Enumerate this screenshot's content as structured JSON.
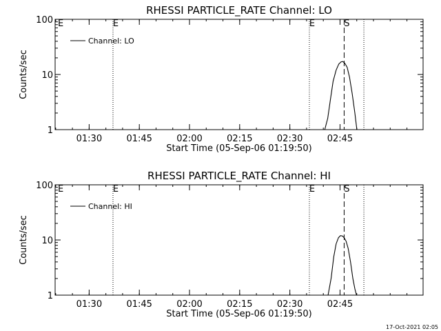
{
  "timestamp": "17-Oct-2021 02:05",
  "chart_data": [
    {
      "type": "line",
      "title": "RHESSI PARTICLE_RATE Channel: LO",
      "xlabel": "Start Time (05-Sep-06 01:19:50)",
      "ylabel": "Counts/sec",
      "x_unit": "minutes after 01:19:50",
      "xlim": [
        0,
        110
      ],
      "ylim": [
        1,
        100
      ],
      "yscale": "log",
      "xticks": [
        {
          "x": 10.17,
          "label": "01:30"
        },
        {
          "x": 25.17,
          "label": "01:45"
        },
        {
          "x": 40.17,
          "label": "02:00"
        },
        {
          "x": 55.17,
          "label": "02:15"
        },
        {
          "x": 70.17,
          "label": "02:30"
        },
        {
          "x": 85.17,
          "label": "02:45"
        }
      ],
      "yticks": [
        {
          "y": 1,
          "label": "1"
        },
        {
          "y": 10,
          "label": "10"
        },
        {
          "y": 100,
          "label": "100"
        }
      ],
      "legend": {
        "label": "Channel: LO",
        "position": "top-left"
      },
      "markers": [
        {
          "x": 17.3,
          "label": "E",
          "style": "dotted"
        },
        {
          "x": 76.0,
          "label": "E",
          "style": "dotted"
        },
        {
          "x": 86.4,
          "label": "S",
          "style": "dashed"
        },
        {
          "x": 92.3,
          "label": "",
          "style": "dotted"
        }
      ],
      "series": [
        {
          "x": [
            80.6,
            81.5,
            82.3,
            83.1,
            84.0,
            84.8,
            85.5,
            86.0,
            86.6,
            87.3,
            88.0,
            88.8,
            89.6,
            90.2
          ],
          "y": [
            1,
            1.6,
            3.5,
            7.5,
            12,
            15.5,
            17,
            17.2,
            16,
            13.5,
            9,
            4.5,
            2,
            1
          ]
        }
      ]
    },
    {
      "type": "line",
      "title": "RHESSI PARTICLE_RATE Channel: HI",
      "xlabel": "Start Time (05-Sep-06 01:19:50)",
      "ylabel": "Counts/sec",
      "x_unit": "minutes after 01:19:50",
      "xlim": [
        0,
        110
      ],
      "ylim": [
        1,
        100
      ],
      "yscale": "log",
      "xticks": [
        {
          "x": 10.17,
          "label": "01:30"
        },
        {
          "x": 25.17,
          "label": "01:45"
        },
        {
          "x": 40.17,
          "label": "02:00"
        },
        {
          "x": 55.17,
          "label": "02:15"
        },
        {
          "x": 70.17,
          "label": "02:30"
        },
        {
          "x": 85.17,
          "label": "02:45"
        }
      ],
      "yticks": [
        {
          "y": 1,
          "label": "1"
        },
        {
          "y": 10,
          "label": "10"
        },
        {
          "y": 100,
          "label": "100"
        }
      ],
      "legend": {
        "label": "Channel: HI",
        "position": "top-left"
      },
      "markers": [
        {
          "x": 17.3,
          "label": "E",
          "style": "dotted"
        },
        {
          "x": 76.0,
          "label": "E",
          "style": "dotted"
        },
        {
          "x": 86.4,
          "label": "S",
          "style": "dashed"
        },
        {
          "x": 92.3,
          "label": "",
          "style": "dotted"
        }
      ],
      "series": [
        {
          "x": [
            81.6,
            82.5,
            83.3,
            84.0,
            84.7,
            85.3,
            85.9,
            86.4,
            87.0,
            87.6,
            88.3,
            89.0,
            89.6,
            90.1
          ],
          "y": [
            1,
            2,
            5,
            8.5,
            11,
            12,
            11.8,
            11,
            9.5,
            7,
            4,
            2,
            1.3,
            1
          ]
        }
      ]
    }
  ]
}
